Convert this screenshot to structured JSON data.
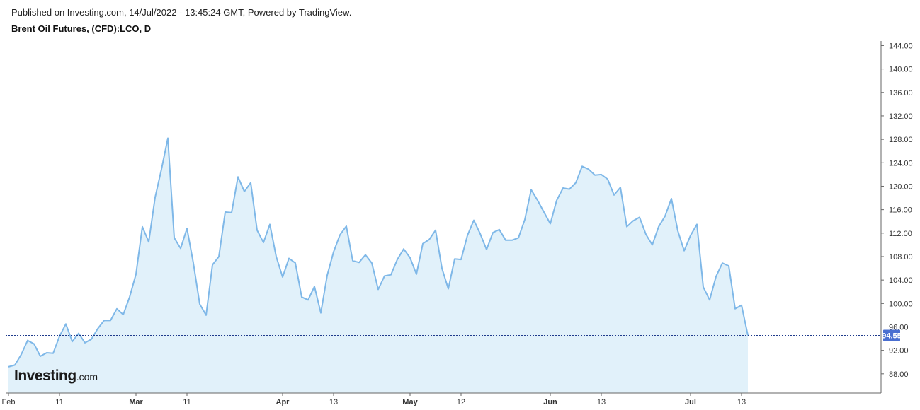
{
  "header": {
    "published": "Published on Investing.com, 14/Jul/2022 - 13:45:24 GMT, Powered by TradingView.",
    "symbol": "Brent Oil Futures, (CFD):LCO, D"
  },
  "logo": {
    "name": "Investing",
    "suffix": ".com"
  },
  "colors": {
    "line": "#7fb8e8",
    "fill": "#e1f1fa",
    "last_price_line": "#1f3b8c",
    "last_price_badge": "#4a6fd1",
    "axis": "#666666"
  },
  "chart_data": {
    "type": "area",
    "title": "Brent Oil Futures, (CFD):LCO, D",
    "y_axis_position": "right",
    "ylim": [
      84,
      145.5
    ],
    "yticks": [
      "88.00",
      "92.00",
      "96.00",
      "100.00",
      "104.00",
      "108.00",
      "112.00",
      "116.00",
      "120.00",
      "124.00",
      "128.00",
      "132.00",
      "136.00",
      "140.00",
      "144.00"
    ],
    "x_ticks": [
      {
        "label": "Feb",
        "index": 0,
        "bold": false
      },
      {
        "label": "11",
        "index": 8,
        "bold": false
      },
      {
        "label": "Mar",
        "index": 20,
        "bold": true
      },
      {
        "label": "11",
        "index": 28,
        "bold": false
      },
      {
        "label": "Apr",
        "index": 43,
        "bold": true
      },
      {
        "label": "13",
        "index": 51,
        "bold": false
      },
      {
        "label": "May",
        "index": 63,
        "bold": true
      },
      {
        "label": "12",
        "index": 71,
        "bold": false
      },
      {
        "label": "Jun",
        "index": 85,
        "bold": true
      },
      {
        "label": "13",
        "index": 93,
        "bold": false
      },
      {
        "label": "Jul",
        "index": 107,
        "bold": true
      },
      {
        "label": "13",
        "index": 115,
        "bold": false
      }
    ],
    "last_price": "94.55",
    "series": [
      {
        "values": [
          89.2,
          89.5,
          91.3,
          93.7,
          93.1,
          91.0,
          91.6,
          91.5,
          94.4,
          96.5,
          93.5,
          94.9,
          93.3,
          93.9,
          95.7,
          97.1,
          97.1,
          99.1,
          98.1,
          101.1,
          105.0,
          113.1,
          110.5,
          118.1,
          122.9,
          128.2,
          111.2,
          109.4,
          112.8,
          106.9,
          99.9,
          98.0,
          106.6,
          108.0,
          115.6,
          115.5,
          121.6,
          119.1,
          120.6,
          112.5,
          110.4,
          113.5,
          108.0,
          104.5,
          107.7,
          106.9,
          101.1,
          100.6,
          102.9,
          98.4,
          104.8,
          108.8,
          111.7,
          113.2,
          107.3,
          107.0,
          108.3,
          106.9,
          102.4,
          104.7,
          104.9,
          107.5,
          109.3,
          107.8,
          105.0,
          110.2,
          110.9,
          112.5,
          106.0,
          102.5,
          107.6,
          107.5,
          111.6,
          114.2,
          111.9,
          109.2,
          112.1,
          112.6,
          110.8,
          110.8,
          111.2,
          114.3,
          119.4,
          117.6,
          115.6,
          113.6,
          117.6,
          119.7,
          119.5,
          120.6,
          123.4,
          122.9,
          121.9,
          122.0,
          121.2,
          118.5,
          119.8,
          113.1,
          114.1,
          114.7,
          111.8,
          110.0,
          113.1,
          114.9,
          117.9,
          112.4,
          109.0,
          111.6,
          113.5,
          102.8,
          100.6,
          104.6,
          106.9,
          106.4,
          99.1,
          99.7,
          94.55
        ]
      }
    ]
  }
}
